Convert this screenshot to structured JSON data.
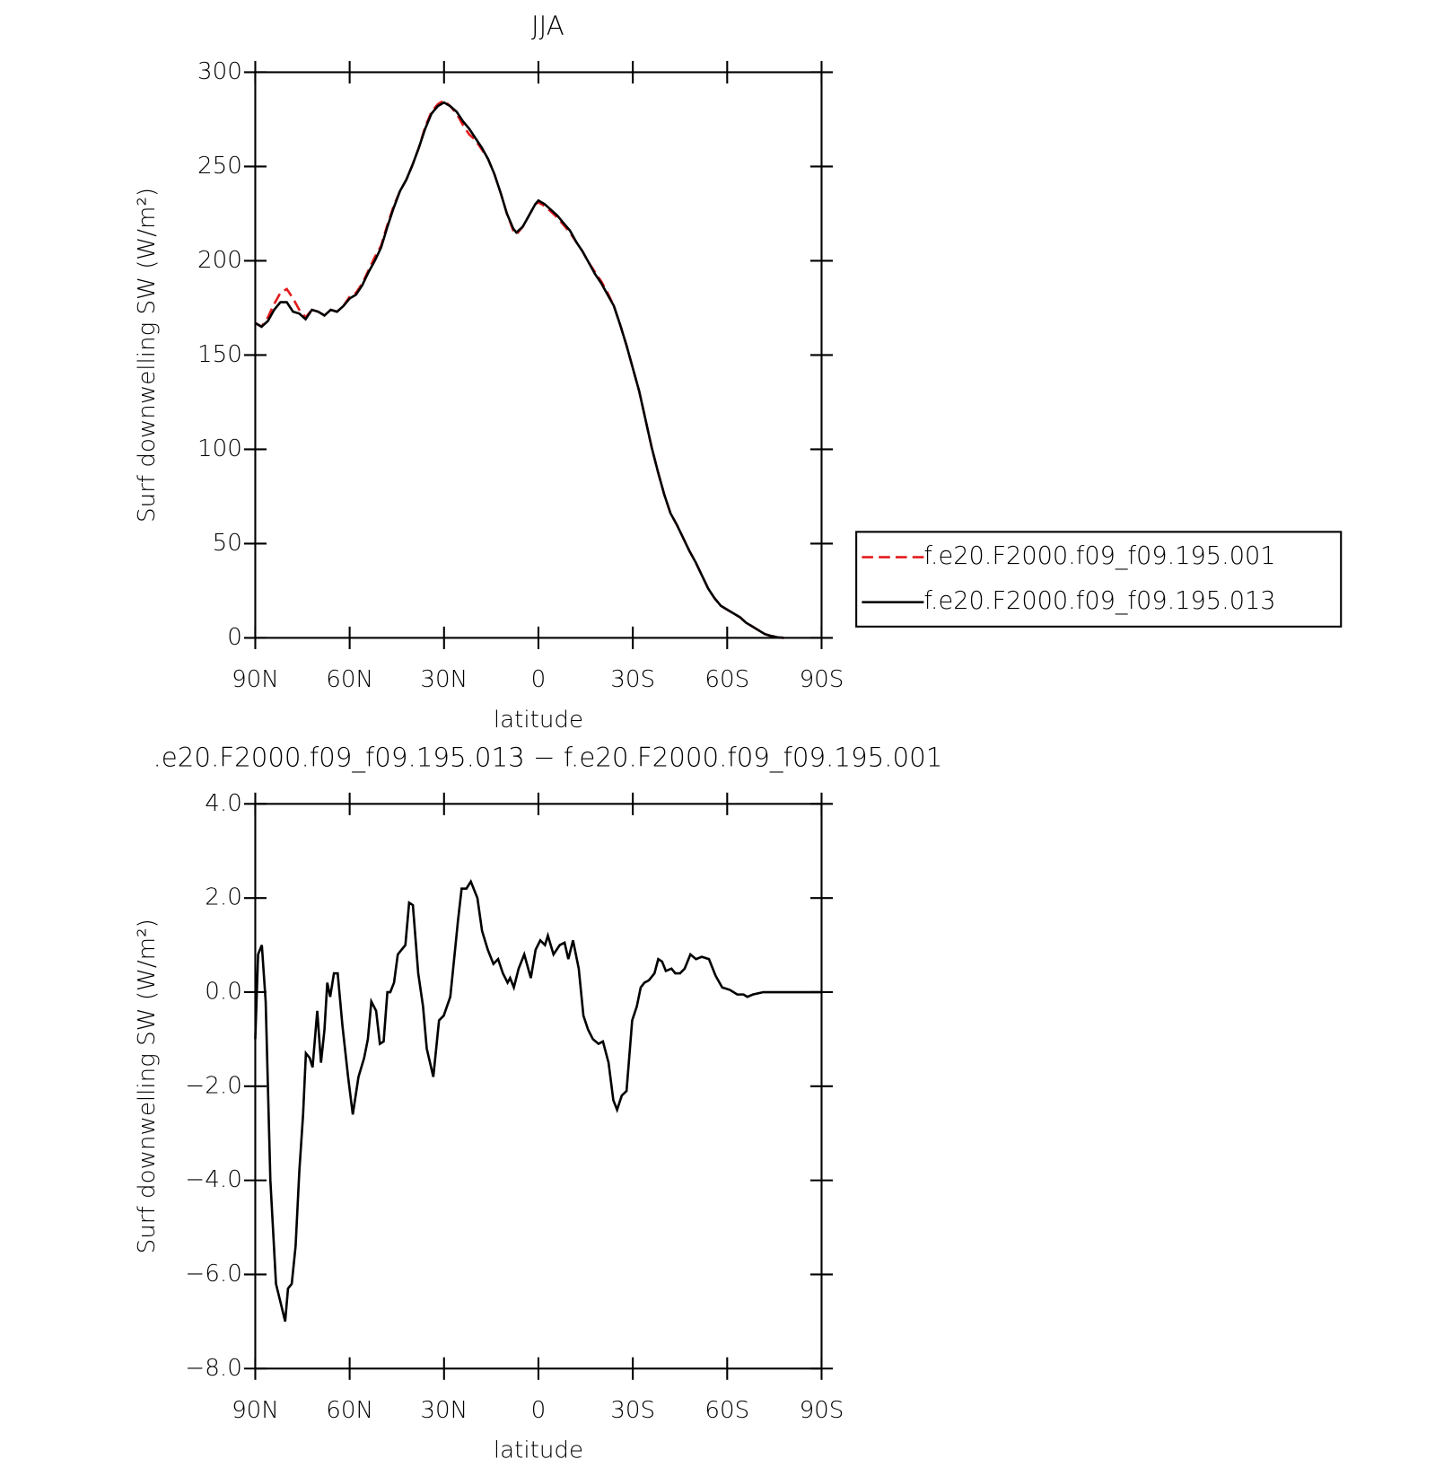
{
  "chart_data": [
    {
      "type": "line",
      "title": "JJA",
      "xlabel": "latitude",
      "ylabel": "Surf downwelling SW (W/m²)",
      "xlim": [
        90,
        -90
      ],
      "xticks": [
        {
          "value": 90,
          "label": "90N"
        },
        {
          "value": 60,
          "label": "60N"
        },
        {
          "value": 30,
          "label": "30N"
        },
        0,
        {
          "value": -30,
          "label": "30S"
        },
        {
          "value": -60,
          "label": "60S"
        },
        {
          "value": -90,
          "label": "90S"
        }
      ],
      "ylim": [
        0,
        300
      ],
      "yticks": [
        0,
        50,
        100,
        150,
        200,
        250,
        300
      ],
      "legend": "right",
      "x": [
        90,
        88,
        86,
        84,
        82,
        80,
        78,
        76,
        74,
        72,
        70,
        68,
        66,
        64,
        62,
        60,
        58,
        56,
        54,
        52,
        50,
        48,
        46,
        44,
        42,
        40,
        38,
        36,
        34,
        32,
        30,
        28,
        26,
        24,
        22,
        20,
        18,
        16,
        14,
        12,
        10,
        8,
        7,
        5,
        3,
        1,
        0,
        -2,
        -4,
        -6,
        -8,
        -10,
        -12,
        -14,
        -16,
        -18,
        -20,
        -22,
        -24,
        -26,
        -28,
        -30,
        -32,
        -34,
        -36,
        -38,
        -40,
        -42,
        -44,
        -46,
        -48,
        -50,
        -52,
        -54,
        -56,
        -58,
        -60,
        -62,
        -64,
        -66,
        -68,
        -70,
        -72,
        -74,
        -76,
        -78
      ],
      "series": [
        {
          "name": "f.e20.F2000.f09_f09.195.001",
          "color": "#e41a1c",
          "dash": "dashed",
          "values": [
            167,
            165,
            170,
            177,
            183,
            185,
            180,
            174,
            170,
            174,
            173,
            171,
            174,
            173,
            176,
            181,
            183,
            188,
            195,
            202,
            208,
            219,
            229,
            237,
            243,
            251,
            260,
            271,
            279,
            283,
            285,
            282,
            278,
            272,
            267,
            264,
            259,
            254,
            246,
            236,
            225,
            216,
            214,
            218,
            224,
            230,
            231,
            229,
            226,
            223,
            219,
            215,
            210,
            205,
            199,
            194,
            189,
            183,
            176,
            166,
            155,
            143,
            131,
            116,
            101,
            88,
            76,
            66,
            60,
            53,
            46,
            40,
            33,
            26,
            21,
            17,
            15,
            13,
            11,
            8,
            6,
            4,
            2,
            1,
            0.3,
            0
          ]
        },
        {
          "name": "f.e20.F2000.f09_f09.195.013",
          "color": "#000000",
          "dash": "solid",
          "values": [
            167,
            165,
            168,
            174,
            178,
            178,
            173,
            172,
            169,
            174,
            173,
            171,
            174,
            173,
            176,
            180,
            182,
            187,
            194,
            200,
            207,
            218,
            228,
            237,
            243,
            251,
            260,
            270,
            278,
            282,
            284,
            282,
            279,
            274,
            270,
            265,
            260,
            254,
            246,
            236,
            225,
            217,
            215,
            218,
            224,
            230,
            232,
            230,
            227,
            224,
            220,
            216,
            210,
            205,
            199,
            193,
            188,
            182,
            176,
            166,
            155,
            143,
            131,
            116,
            101,
            88,
            76,
            66,
            60,
            53,
            46,
            40,
            33,
            26,
            21,
            17,
            15,
            13,
            11,
            8,
            6,
            4,
            2,
            1,
            0.3,
            0
          ]
        }
      ]
    },
    {
      "type": "line",
      "title": ".e20.F2000.f09_f09.195.013 − f.e20.F2000.f09_f09.195.001",
      "xlabel": "latitude",
      "ylabel": "Surf downwelling SW (W/m²)",
      "xlim": [
        90,
        -90
      ],
      "xticks": [
        {
          "value": 90,
          "label": "90N"
        },
        {
          "value": 60,
          "label": "60N"
        },
        {
          "value": 30,
          "label": "30N"
        },
        0,
        {
          "value": -30,
          "label": "30S"
        },
        {
          "value": -60,
          "label": "60S"
        },
        {
          "value": -90,
          "label": "90S"
        }
      ],
      "ylim": [
        -8,
        4
      ],
      "yticks": [
        {
          "value": -8,
          "label": "−8.0"
        },
        {
          "value": -6,
          "label": "−6.0"
        },
        {
          "value": -4,
          "label": "−4.0"
        },
        {
          "value": -2,
          "label": "−2.0"
        },
        {
          "value": 0,
          "label": "0.0"
        },
        {
          "value": 2,
          "label": "2.0"
        },
        {
          "value": 4,
          "label": "4.0"
        }
      ],
      "x": [
        90,
        89.1,
        87.9,
        86.7,
        85.2,
        83.4,
        82.3,
        80.5,
        79.6,
        78.4,
        77.2,
        76.0,
        74.8,
        73.9,
        72.7,
        71.8,
        70.3,
        69.1,
        68.0,
        67.1,
        66.2,
        65.0,
        63.8,
        62.3,
        60.5,
        59.0,
        57.2,
        55.4,
        54.2,
        53.1,
        51.6,
        50.4,
        49.2,
        48.0,
        47.1,
        45.9,
        44.7,
        43.5,
        42.3,
        41.1,
        39.9,
        38.2,
        36.7,
        35.5,
        33.4,
        31.6,
        30.1,
        28.0,
        26.5,
        25.6,
        24.4,
        22.9,
        21.5,
        19.4,
        17.9,
        16.1,
        14.3,
        12.8,
        11.3,
        9.8,
        9.0,
        7.8,
        6.3,
        4.5,
        2.4,
        0.9,
        -0.6,
        -2.1,
        -3.0,
        -4.8,
        -6.8,
        -8.3,
        -9.5,
        -11.0,
        -12.8,
        -14.3,
        -15.8,
        -17.3,
        -19.1,
        -20.5,
        -22.3,
        -23.8,
        -25.0,
        -26.5,
        -28.0,
        -29.8,
        -31.3,
        -32.5,
        -33.7,
        -35.1,
        -36.9,
        -38.1,
        -39.3,
        -40.5,
        -42.3,
        -43.5,
        -45.0,
        -46.5,
        -48.3,
        -50.1,
        -51.9,
        -54.2,
        -56.3,
        -58.4,
        -60.8,
        -63.2,
        -65.2,
        -66.4,
        -68.2,
        -71.5,
        -77.8,
        -90
      ],
      "series": [
        {
          "color": "#000000",
          "dash": "solid",
          "values": [
            -1.0,
            0.8,
            1.0,
            -0.2,
            -4.0,
            -6.2,
            -6.5,
            -7.0,
            -6.3,
            -6.2,
            -5.4,
            -3.8,
            -2.6,
            -1.3,
            -1.4,
            -1.6,
            -0.4,
            -1.5,
            -0.8,
            0.2,
            -0.1,
            0.4,
            0.4,
            -0.7,
            -1.8,
            -2.6,
            -1.8,
            -1.4,
            -1.0,
            -0.2,
            -0.4,
            -1.1,
            -1.05,
            0.0,
            0.0,
            0.2,
            0.8,
            0.9,
            1.0,
            1.9,
            1.85,
            0.4,
            -0.3,
            -1.2,
            -1.8,
            -0.6,
            -0.5,
            -0.1,
            0.9,
            1.5,
            2.2,
            2.2,
            2.35,
            2.0,
            1.3,
            0.9,
            0.6,
            0.7,
            0.4,
            0.2,
            0.3,
            0.1,
            0.5,
            0.8,
            0.3,
            0.9,
            1.1,
            1.0,
            1.2,
            0.8,
            1.0,
            1.05,
            0.7,
            1.1,
            0.5,
            -0.5,
            -0.8,
            -1.0,
            -1.1,
            -1.05,
            -1.5,
            -2.3,
            -2.5,
            -2.2,
            -2.1,
            -0.6,
            -0.3,
            0.1,
            0.2,
            0.25,
            0.4,
            0.7,
            0.65,
            0.45,
            0.5,
            0.4,
            0.4,
            0.5,
            0.8,
            0.7,
            0.75,
            0.7,
            0.35,
            0.1,
            0.05,
            -0.05,
            -0.05,
            -0.1,
            -0.05,
            0,
            0,
            0
          ]
        }
      ]
    }
  ]
}
